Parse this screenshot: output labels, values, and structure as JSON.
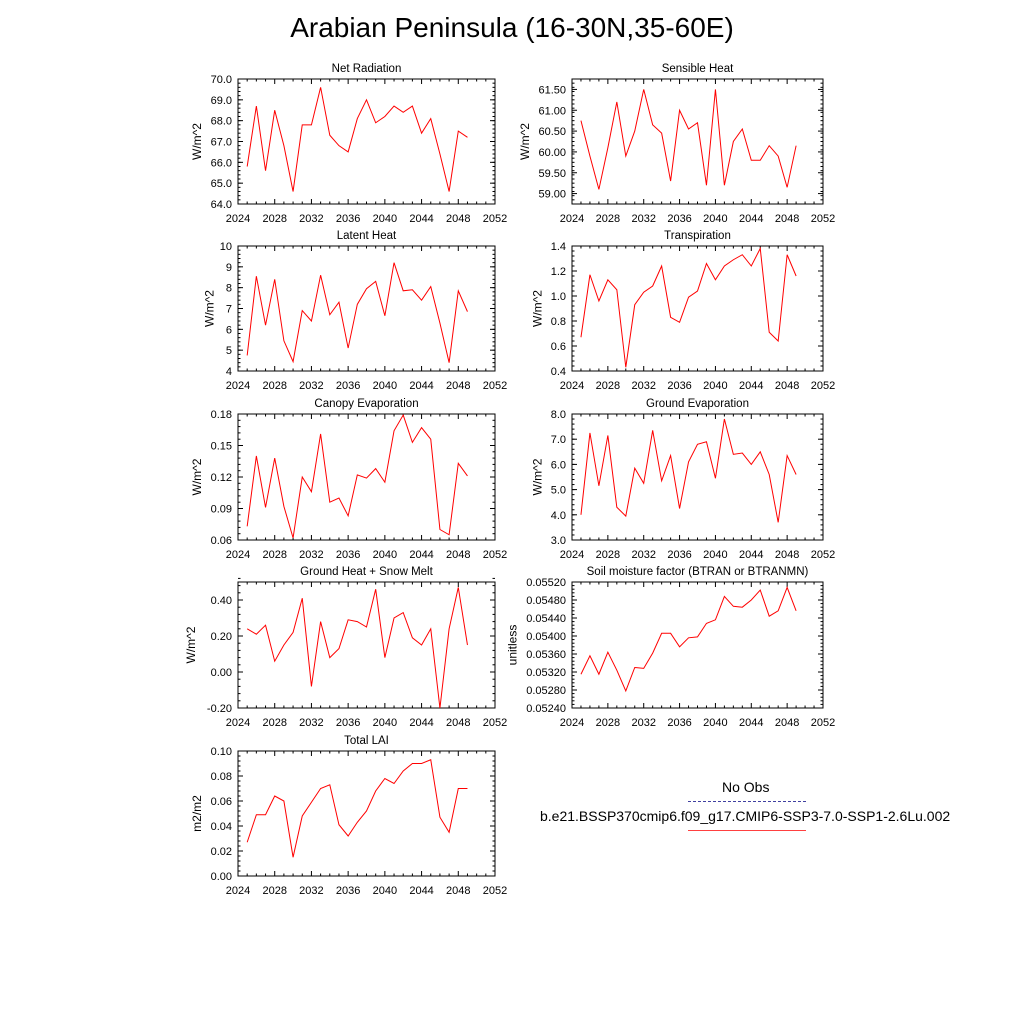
{
  "title": "Arabian Peninsula (16-30N,35-60E)",
  "legend": {
    "obs_label": "No Obs",
    "obs_color": "#4040a0",
    "case_label": "b.e21.BSSP370cmip6.f09_g17.CMIP6-SSP3-7.0-SSP1-2.6Lu.002",
    "case_color": "#ff0000"
  },
  "chart_data": [
    {
      "type": "line",
      "title": "Net Radiation",
      "ylabel": "W/m^2",
      "xlim": [
        2024,
        2052
      ],
      "ylim": [
        64.0,
        70.0
      ],
      "xticks": [
        "2024",
        "2028",
        "2032",
        "2036",
        "2040",
        "2044",
        "2048",
        "2052"
      ],
      "yticks": [
        "64.0",
        "65.0",
        "66.0",
        "67.0",
        "68.0",
        "69.0",
        "70.0"
      ],
      "x": [
        2025,
        2026,
        2027,
        2028,
        2029,
        2030,
        2031,
        2032,
        2033,
        2034,
        2035,
        2036,
        2037,
        2038,
        2039,
        2040,
        2041,
        2042,
        2043,
        2044,
        2045,
        2046,
        2047,
        2048,
        2049
      ],
      "series": [
        {
          "color": "#ff0000",
          "values": [
            65.8,
            68.7,
            65.6,
            68.5,
            66.8,
            64.6,
            67.8,
            67.8,
            69.6,
            67.3,
            66.8,
            66.5,
            68.1,
            69.0,
            67.9,
            68.2,
            68.7,
            68.4,
            68.7,
            67.4,
            68.1,
            66.4,
            64.6,
            67.5,
            67.2
          ]
        }
      ]
    },
    {
      "type": "line",
      "title": "Sensible Heat",
      "ylabel": "W/m^2",
      "xlim": [
        2024,
        2052
      ],
      "ylim": [
        58.75,
        61.75
      ],
      "xticks": [
        "2024",
        "2028",
        "2032",
        "2036",
        "2040",
        "2044",
        "2048",
        "2052"
      ],
      "yticks": [
        "59.00",
        "59.50",
        "60.00",
        "60.50",
        "61.00",
        "61.50"
      ],
      "x": [
        2025,
        2026,
        2027,
        2028,
        2029,
        2030,
        2031,
        2032,
        2033,
        2034,
        2035,
        2036,
        2037,
        2038,
        2039,
        2040,
        2041,
        2042,
        2043,
        2044,
        2045,
        2046,
        2047,
        2048,
        2049
      ],
      "series": [
        {
          "color": "#ff0000",
          "values": [
            60.75,
            59.9,
            59.1,
            60.1,
            61.2,
            59.9,
            60.5,
            61.5,
            60.65,
            60.45,
            59.3,
            61.0,
            60.55,
            60.7,
            59.2,
            61.5,
            59.2,
            60.25,
            60.55,
            59.8,
            59.8,
            60.15,
            59.9,
            59.15,
            60.15
          ]
        }
      ]
    },
    {
      "type": "line",
      "title": "Latent Heat",
      "ylabel": "W/m^2",
      "xlim": [
        2024,
        2052
      ],
      "ylim": [
        4,
        10
      ],
      "xticks": [
        "2024",
        "2028",
        "2032",
        "2036",
        "2040",
        "2044",
        "2048",
        "2052"
      ],
      "yticks": [
        "4",
        "5",
        "6",
        "7",
        "8",
        "9",
        "10"
      ],
      "x": [
        2025,
        2026,
        2027,
        2028,
        2029,
        2030,
        2031,
        2032,
        2033,
        2034,
        2035,
        2036,
        2037,
        2038,
        2039,
        2040,
        2041,
        2042,
        2043,
        2044,
        2045,
        2046,
        2047,
        2048,
        2049
      ],
      "series": [
        {
          "color": "#ff0000",
          "values": [
            4.75,
            8.55,
            6.2,
            8.4,
            5.45,
            4.45,
            6.9,
            6.4,
            8.6,
            6.7,
            7.3,
            5.1,
            7.2,
            7.95,
            8.3,
            6.65,
            9.2,
            7.85,
            7.9,
            7.4,
            8.05,
            6.3,
            4.4,
            7.85,
            6.85
          ]
        }
      ]
    },
    {
      "type": "line",
      "title": "Transpiration",
      "ylabel": "W/m^2",
      "xlim": [
        2024,
        2052
      ],
      "ylim": [
        0.4,
        1.4
      ],
      "xticks": [
        "2024",
        "2028",
        "2032",
        "2036",
        "2040",
        "2044",
        "2048",
        "2052"
      ],
      "yticks": [
        "0.4",
        "0.6",
        "0.8",
        "1.0",
        "1.2",
        "1.4"
      ],
      "x": [
        2025,
        2026,
        2027,
        2028,
        2029,
        2030,
        2031,
        2032,
        2033,
        2034,
        2035,
        2036,
        2037,
        2038,
        2039,
        2040,
        2041,
        2042,
        2043,
        2044,
        2045,
        2046,
        2047,
        2048,
        2049
      ],
      "series": [
        {
          "color": "#ff0000",
          "values": [
            0.67,
            1.17,
            0.96,
            1.13,
            1.05,
            0.43,
            0.93,
            1.03,
            1.08,
            1.24,
            0.83,
            0.79,
            0.99,
            1.04,
            1.26,
            1.13,
            1.24,
            1.29,
            1.33,
            1.24,
            1.38,
            0.71,
            0.64,
            1.33,
            1.16
          ]
        }
      ]
    },
    {
      "type": "line",
      "title": "Canopy Evaporation",
      "ylabel": "W/m^2",
      "xlim": [
        2024,
        2052
      ],
      "ylim": [
        0.06,
        0.18
      ],
      "xticks": [
        "2024",
        "2028",
        "2032",
        "2036",
        "2040",
        "2044",
        "2048",
        "2052"
      ],
      "yticks": [
        "0.06",
        "0.09",
        "0.12",
        "0.15",
        "0.18"
      ],
      "x": [
        2025,
        2026,
        2027,
        2028,
        2029,
        2030,
        2031,
        2032,
        2033,
        2034,
        2035,
        2036,
        2037,
        2038,
        2039,
        2040,
        2041,
        2042,
        2043,
        2044,
        2045,
        2046,
        2047,
        2048,
        2049
      ],
      "series": [
        {
          "color": "#ff0000",
          "values": [
            0.073,
            0.14,
            0.091,
            0.138,
            0.092,
            0.062,
            0.12,
            0.106,
            0.161,
            0.096,
            0.1,
            0.083,
            0.122,
            0.119,
            0.128,
            0.115,
            0.164,
            0.179,
            0.153,
            0.167,
            0.156,
            0.07,
            0.065,
            0.133,
            0.121
          ]
        }
      ]
    },
    {
      "type": "line",
      "title": "Ground Evaporation",
      "ylabel": "W/m^2",
      "xlim": [
        2024,
        2052
      ],
      "ylim": [
        3.0,
        8.0
      ],
      "xticks": [
        "2024",
        "2028",
        "2032",
        "2036",
        "2040",
        "2044",
        "2048",
        "2052"
      ],
      "yticks": [
        "3.0",
        "4.0",
        "5.0",
        "6.0",
        "7.0",
        "8.0"
      ],
      "x": [
        2025,
        2026,
        2027,
        2028,
        2029,
        2030,
        2031,
        2032,
        2033,
        2034,
        2035,
        2036,
        2037,
        2038,
        2039,
        2040,
        2041,
        2042,
        2043,
        2044,
        2045,
        2046,
        2047,
        2048,
        2049
      ],
      "series": [
        {
          "color": "#ff0000",
          "values": [
            4.0,
            7.25,
            5.15,
            7.15,
            4.3,
            3.95,
            5.85,
            5.25,
            7.35,
            5.35,
            6.35,
            4.25,
            6.1,
            6.8,
            6.9,
            5.45,
            7.8,
            6.4,
            6.45,
            6.0,
            6.5,
            5.6,
            3.7,
            6.35,
            5.6
          ]
        }
      ]
    },
    {
      "type": "line",
      "title": "Ground Heat + Snow Melt",
      "ylabel": "W/m^2",
      "xlim": [
        2024,
        2052
      ],
      "ylim": [
        -0.2,
        0.5
      ],
      "xticks": [
        "2024",
        "2028",
        "2032",
        "2036",
        "2040",
        "2044",
        "2048",
        "2052"
      ],
      "yticks": [
        "-0.20",
        "0.00",
        "0.20",
        "0.40"
      ],
      "x": [
        2025,
        2026,
        2027,
        2028,
        2029,
        2030,
        2031,
        2032,
        2033,
        2034,
        2035,
        2036,
        2037,
        2038,
        2039,
        2040,
        2041,
        2042,
        2043,
        2044,
        2045,
        2046,
        2047,
        2048,
        2049
      ],
      "series": [
        {
          "color": "#ff0000",
          "values": [
            0.24,
            0.21,
            0.26,
            0.06,
            0.15,
            0.22,
            0.41,
            -0.08,
            0.28,
            0.08,
            0.13,
            0.29,
            0.28,
            0.25,
            0.46,
            0.08,
            0.3,
            0.33,
            0.19,
            0.15,
            0.24,
            -0.2,
            0.24,
            0.47,
            0.15
          ]
        }
      ]
    },
    {
      "type": "line",
      "title": "Soil moisture factor (BTRAN or BTRANMN)",
      "ylabel": "unitless",
      "xlim": [
        2024,
        2052
      ],
      "ylim": [
        0.0524,
        0.0552
      ],
      "xticks": [
        "2024",
        "2028",
        "2032",
        "2036",
        "2040",
        "2044",
        "2048",
        "2052"
      ],
      "yticks": [
        "0.05240",
        "0.05280",
        "0.05320",
        "0.05360",
        "0.05400",
        "0.05440",
        "0.05480",
        "0.05520"
      ],
      "x": [
        2025,
        2026,
        2027,
        2028,
        2029,
        2030,
        2031,
        2032,
        2033,
        2034,
        2035,
        2036,
        2037,
        2038,
        2039,
        2040,
        2041,
        2042,
        2043,
        2044,
        2045,
        2046,
        2047,
        2048,
        2049
      ],
      "series": [
        {
          "color": "#ff0000",
          "values": [
            0.05315,
            0.05356,
            0.05315,
            0.05364,
            0.05324,
            0.05278,
            0.0533,
            0.05328,
            0.05362,
            0.05406,
            0.05406,
            0.05376,
            0.05396,
            0.05398,
            0.05428,
            0.05436,
            0.05488,
            0.05466,
            0.05464,
            0.0548,
            0.05502,
            0.05444,
            0.05456,
            0.05508,
            0.05456
          ]
        }
      ]
    },
    {
      "type": "line",
      "title": "Total LAI",
      "ylabel": "m2/m2",
      "xlim": [
        2024,
        2052
      ],
      "ylim": [
        0.0,
        0.1
      ],
      "xticks": [
        "2024",
        "2028",
        "2032",
        "2036",
        "2040",
        "2044",
        "2048",
        "2052"
      ],
      "yticks": [
        "0.00",
        "0.02",
        "0.04",
        "0.06",
        "0.08",
        "0.10"
      ],
      "x": [
        2025,
        2026,
        2027,
        2028,
        2029,
        2030,
        2031,
        2032,
        2033,
        2034,
        2035,
        2036,
        2037,
        2038,
        2039,
        2040,
        2041,
        2042,
        2043,
        2044,
        2045,
        2046,
        2047,
        2048,
        2049
      ],
      "series": [
        {
          "color": "#ff0000",
          "values": [
            0.027,
            0.049,
            0.049,
            0.064,
            0.06,
            0.015,
            0.048,
            0.059,
            0.07,
            0.073,
            0.041,
            0.032,
            0.043,
            0.052,
            0.068,
            0.078,
            0.074,
            0.084,
            0.09,
            0.09,
            0.093,
            0.047,
            0.035,
            0.07,
            0.07
          ]
        }
      ]
    }
  ]
}
